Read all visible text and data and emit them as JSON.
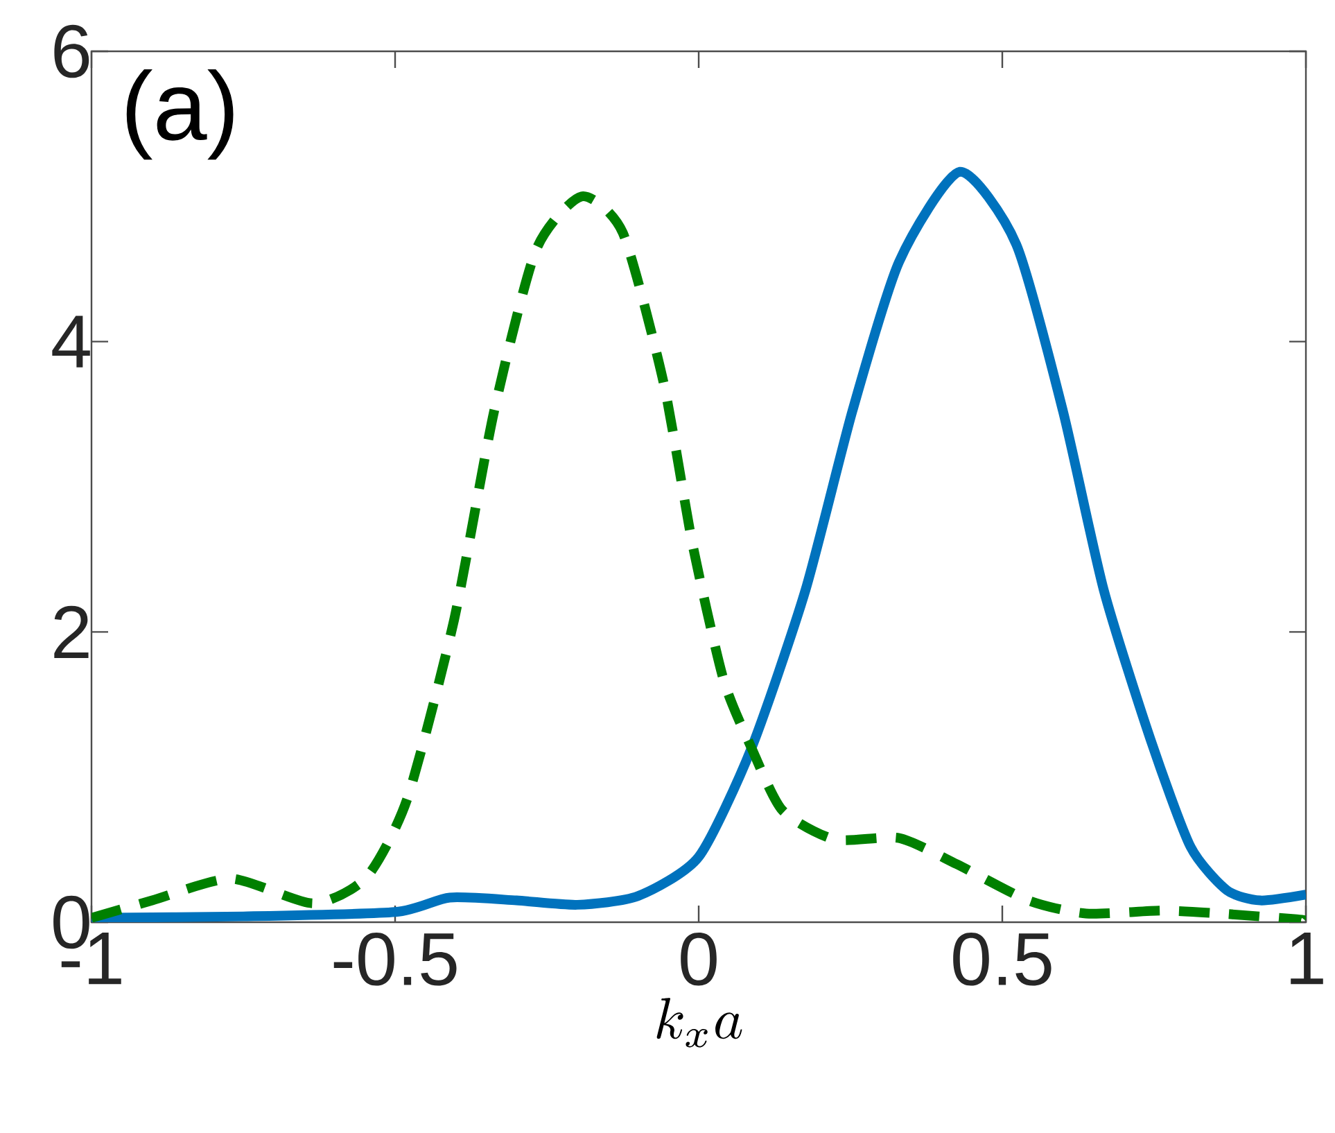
{
  "chart_data": {
    "type": "line",
    "title": "(a)",
    "xlabel": "k_x a",
    "xlim": [
      -1,
      1
    ],
    "ylim": [
      0,
      6
    ],
    "xticks": [
      -1,
      -0.5,
      0,
      0.5,
      1
    ],
    "yticks": [
      0,
      2,
      4,
      6
    ],
    "grid": false,
    "series": [
      {
        "color": "#0072bd",
        "line_style": "solid",
        "x": [
          -1,
          -0.75,
          -0.5,
          -0.41,
          -0.3,
          -0.2,
          -0.1,
          0,
          0.087,
          0.176,
          0.253,
          0.33,
          0.43,
          0.523,
          0.6,
          0.667,
          0.744,
          0.81,
          0.87,
          0.925,
          1
        ],
        "values": [
          0.03,
          0.04,
          0.07,
          0.17,
          0.15,
          0.12,
          0.18,
          0.45,
          1.2,
          2.29,
          3.52,
          4.55,
          5.17,
          4.67,
          3.52,
          2.29,
          1.26,
          0.52,
          0.22,
          0.15,
          0.19
        ]
      },
      {
        "color": "#008000",
        "line_style": "dashed",
        "x": [
          -1,
          -0.9,
          -0.77,
          -0.635,
          -0.547,
          -0.48,
          -0.403,
          -0.337,
          -0.268,
          -0.193,
          -0.125,
          -0.058,
          -0.01,
          0.041,
          0.087,
          0.138,
          0.224,
          0.33,
          0.425,
          0.543,
          0.638,
          0.764,
          0.858,
          0.985,
          1
        ],
        "values": [
          0.03,
          0.15,
          0.3,
          0.13,
          0.31,
          0.85,
          2.08,
          3.52,
          4.63,
          5.0,
          4.75,
          3.72,
          2.6,
          1.67,
          1.2,
          0.77,
          0.57,
          0.58,
          0.4,
          0.15,
          0.06,
          0.08,
          0.06,
          0.02,
          0.01
        ]
      }
    ]
  }
}
